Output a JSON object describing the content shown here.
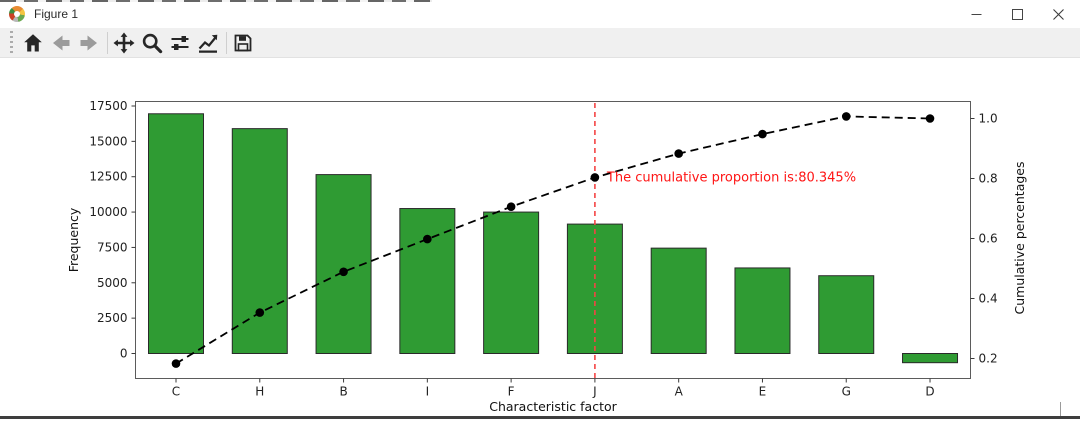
{
  "window": {
    "title": "Figure 1",
    "controls": [
      {
        "name": "minimize"
      },
      {
        "name": "maximize"
      },
      {
        "name": "close"
      }
    ]
  },
  "toolbar": {
    "buttons": [
      {
        "name": "home",
        "icon": "home-icon",
        "disabled": false
      },
      {
        "name": "back",
        "icon": "arrow-left-icon",
        "disabled": true
      },
      {
        "name": "forward",
        "icon": "arrow-right-icon",
        "disabled": true
      },
      {
        "name": "pan",
        "icon": "move-arrows-icon",
        "disabled": false
      },
      {
        "name": "zoom",
        "icon": "magnifier-icon",
        "disabled": false
      },
      {
        "name": "configure-subplots",
        "icon": "sliders-icon",
        "disabled": false
      },
      {
        "name": "edit-axes",
        "icon": "line-chart-icon",
        "disabled": false
      },
      {
        "name": "save",
        "icon": "floppy-disk-icon",
        "disabled": false
      }
    ]
  },
  "chart_data": {
    "type": "bar",
    "subtype": "pareto",
    "title": "",
    "xlabel": "Characteristic factor",
    "ylabel_left": "Frequency",
    "ylabel_right": "Cumulative percentages",
    "categories": [
      "C",
      "H",
      "B",
      "I",
      "F",
      "J",
      "A",
      "E",
      "G",
      "D"
    ],
    "series": [
      {
        "name": "Frequency",
        "type": "bar",
        "axis": "left",
        "values": [
          16950,
          15900,
          12650,
          10250,
          10000,
          9150,
          7450,
          6050,
          5500,
          -650
        ]
      },
      {
        "name": "Cumulative percentages",
        "type": "line",
        "axis": "right",
        "style": "dashed-with-dots",
        "values": [
          0.183,
          0.353,
          0.489,
          0.598,
          0.706,
          0.80345,
          0.883,
          0.948,
          1.007,
          1.0
        ]
      }
    ],
    "yticks_left": [
      0,
      2500,
      5000,
      7500,
      10000,
      12500,
      15000,
      17500
    ],
    "yticks_right": [
      0.2,
      0.4,
      0.6,
      0.8,
      1.0
    ],
    "ylim_left": [
      -1770,
      17860
    ],
    "ylim_right": [
      0.135,
      1.06
    ],
    "grid": false,
    "legend": "none",
    "annotation": {
      "text": "The cumulative proportion is:80.345%",
      "category": "J",
      "value": 0.80345,
      "color": "#ff1515"
    },
    "vline": {
      "category": "J",
      "style": "dashed",
      "color": "#f44545"
    },
    "colors": {
      "bar": "#2f9b33",
      "bar_edge": "#2a2a2a",
      "line": "#000000",
      "marker": "#000000",
      "spine": "#5b5b5b",
      "tick_label": "#1f1f1f"
    }
  }
}
